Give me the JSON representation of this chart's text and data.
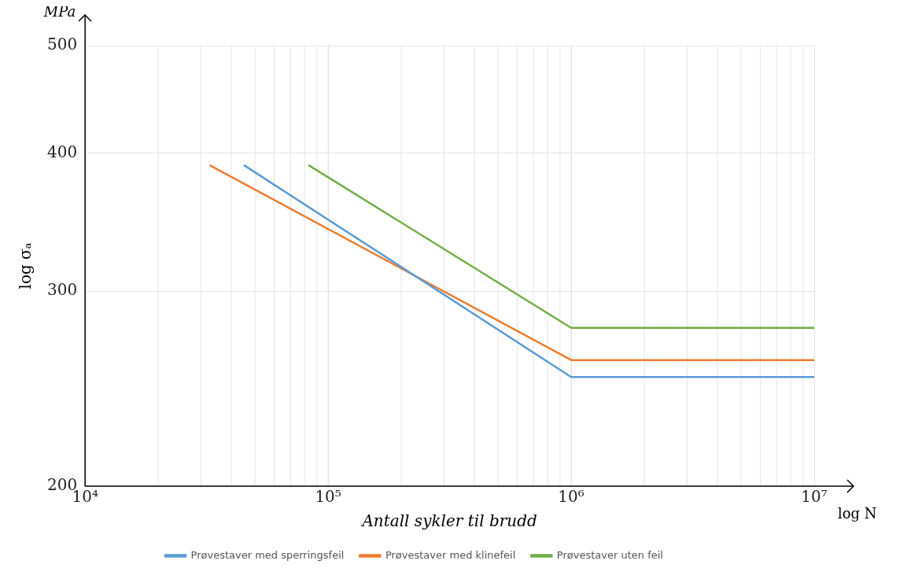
{
  "chart_data": {
    "type": "line",
    "xlabel": "Antall sykler til brudd",
    "ylabel": "log σₐ",
    "annotations": [
      "MPa",
      "log N"
    ],
    "log": "xy",
    "xlim": [
      10000,
      10000000
    ],
    "ylim": [
      200,
      500
    ],
    "xticks": [
      {
        "value": 10000,
        "label": "10⁴"
      },
      {
        "value": 100000,
        "label": "10⁵"
      },
      {
        "value": 1000000,
        "label": "10⁶"
      },
      {
        "value": 10000000,
        "label": "10⁷"
      }
    ],
    "yticks": [
      200,
      300,
      400,
      500
    ],
    "grid": true,
    "legend": "bottom",
    "marker": "none",
    "line_style": "solid",
    "series": [
      {
        "name": "Prøvestaver med sperringsfeil",
        "color": "#5b9bd5",
        "x": [
          45000,
          1000000,
          10000000
        ],
        "values": [
          390,
          251,
          251
        ]
      },
      {
        "name": "Prøvestaver med klinefeil",
        "color": "#ed7d31",
        "x": [
          32500,
          1000000,
          10000000
        ],
        "values": [
          390,
          260,
          260
        ]
      },
      {
        "name": "Prøvestaver uten feil",
        "color": "#70ad47",
        "x": [
          83000,
          1000000,
          10000000
        ],
        "values": [
          390,
          278,
          278
        ]
      }
    ]
  }
}
